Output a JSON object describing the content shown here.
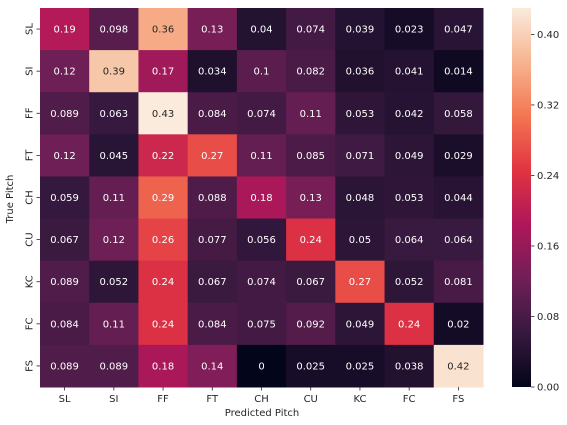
{
  "chart_data": {
    "type": "heatmap",
    "x_categories": [
      "SL",
      "SI",
      "FF",
      "FT",
      "CH",
      "CU",
      "KC",
      "FC",
      "FS"
    ],
    "y_categories": [
      "SL",
      "SI",
      "FF",
      "FT",
      "CH",
      "CU",
      "KC",
      "FC",
      "FS"
    ],
    "xlabel": "Predicted Pitch",
    "ylabel": "True Pitch",
    "values": [
      [
        0.19,
        0.098,
        0.36,
        0.13,
        0.04,
        0.074,
        0.039,
        0.023,
        0.047
      ],
      [
        0.12,
        0.39,
        0.17,
        0.034,
        0.1,
        0.082,
        0.036,
        0.041,
        0.014
      ],
      [
        0.089,
        0.063,
        0.43,
        0.084,
        0.074,
        0.11,
        0.053,
        0.042,
        0.058
      ],
      [
        0.12,
        0.045,
        0.22,
        0.27,
        0.11,
        0.085,
        0.071,
        0.049,
        0.029
      ],
      [
        0.059,
        0.11,
        0.29,
        0.088,
        0.18,
        0.13,
        0.048,
        0.053,
        0.044
      ],
      [
        0.067,
        0.12,
        0.26,
        0.077,
        0.056,
        0.24,
        0.05,
        0.064,
        0.064
      ],
      [
        0.089,
        0.052,
        0.24,
        0.067,
        0.074,
        0.067,
        0.27,
        0.052,
        0.081
      ],
      [
        0.084,
        0.11,
        0.24,
        0.084,
        0.075,
        0.092,
        0.049,
        0.24,
        0.02
      ],
      [
        0.089,
        0.089,
        0.18,
        0.14,
        0,
        0.025,
        0.025,
        0.038,
        0.42
      ]
    ],
    "colorbar": {
      "min": 0,
      "max": 0.43,
      "ticks": [
        0.0,
        0.08,
        0.16,
        0.24,
        0.32,
        0.4
      ],
      "tick_labels": [
        "0.00",
        "0.08",
        "0.16",
        "0.24",
        "0.32",
        "0.40"
      ]
    },
    "colormap": [
      "#03051a",
      "#36193e",
      "#701f57",
      "#ae1759",
      "#e13342",
      "#f37651",
      "#f6b48f",
      "#faebdd"
    ]
  }
}
